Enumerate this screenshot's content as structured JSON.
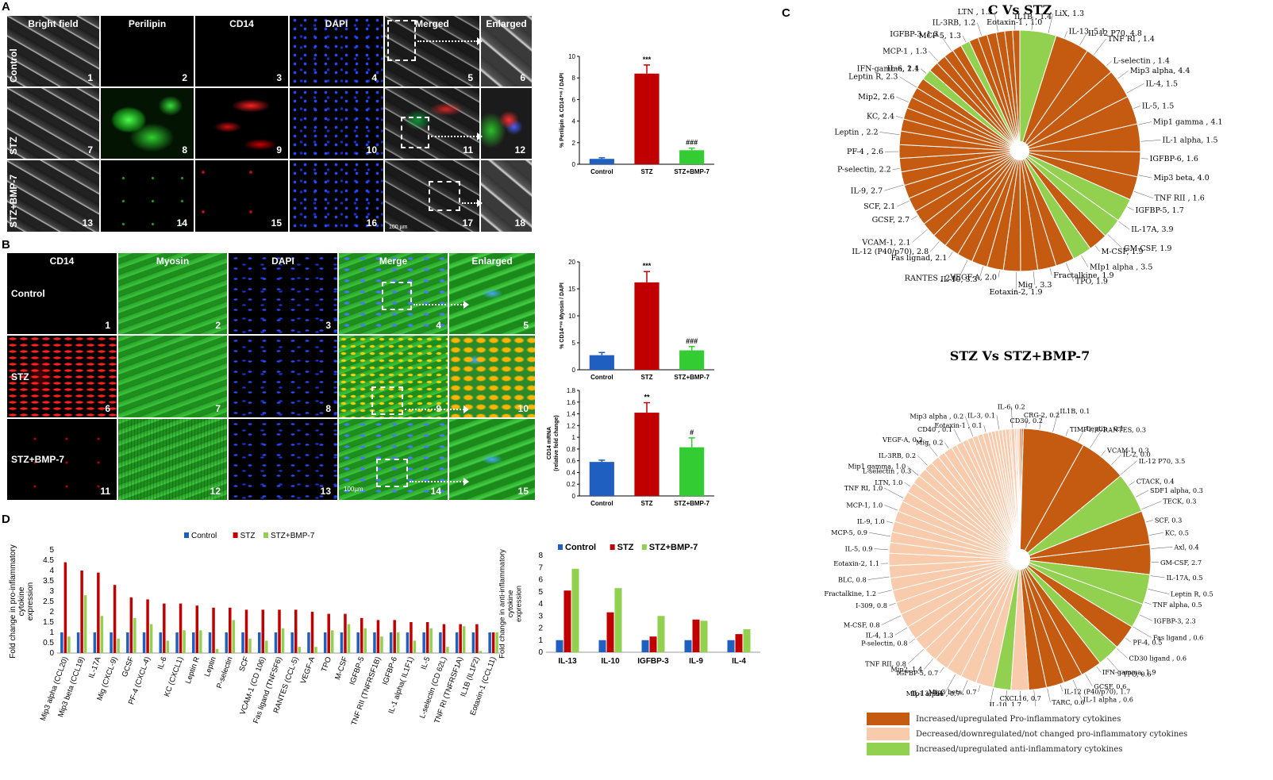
{
  "panels": {
    "a": "A",
    "b": "B",
    "c": "C",
    "d": "D"
  },
  "panelA": {
    "headers": [
      "Bright field",
      "Perilipin",
      "CD14",
      "DAPI",
      "Merged",
      "Enlarged"
    ],
    "rows": [
      "Control",
      "STZ",
      "STZ+BMP-7"
    ],
    "numbers": [
      "1",
      "2",
      "3",
      "4",
      "5",
      "6",
      "7",
      "8",
      "9",
      "10",
      "11",
      "12",
      "13",
      "14",
      "15",
      "16",
      "17",
      "18"
    ],
    "scale": "100 µm"
  },
  "panelB": {
    "headers": [
      "CD14",
      "Myosin",
      "DAPI",
      "Merge",
      "Enlarged"
    ],
    "rows": [
      "Control",
      "STZ",
      "STZ+BMP-7"
    ],
    "numbers": [
      "1",
      "2",
      "3",
      "4",
      "5",
      "6",
      "7",
      "8",
      "9",
      "10",
      "11",
      "12",
      "13",
      "14",
      "15"
    ],
    "scale": "100µm"
  },
  "colors": {
    "control": "#1f5fbf",
    "stz": "#c00000",
    "bmp7": "#33cc33",
    "bmp7light": "#92d050",
    "pro_up": "#c55a11",
    "pro_down": "#f8cbad",
    "anti_up": "#92d050"
  },
  "chart_data": [
    {
      "id": "A-bar",
      "type": "bar",
      "categories": [
        "Control",
        "STZ",
        "STZ+BMP-7"
      ],
      "values": [
        0.5,
        8.4,
        1.3
      ],
      "errors": [
        0.1,
        0.8,
        0.2
      ],
      "ylabel": "% Perilipin & CD14⁺ᵛᵉ / DAPI",
      "ylim": [
        0,
        10
      ],
      "yticks": [
        "0",
        "2",
        "4",
        "6",
        "8",
        "10"
      ],
      "annotations": [
        "",
        "***",
        "###"
      ]
    },
    {
      "id": "B-bar1",
      "type": "bar",
      "categories": [
        "Control",
        "STZ",
        "STZ+BMP-7"
      ],
      "values": [
        2.7,
        16.2,
        3.6
      ],
      "errors": [
        0.5,
        2.0,
        0.7
      ],
      "ylabel": "% CD14⁺ᵛᵉ Myosin / DAPI",
      "ylim": [
        0,
        20
      ],
      "yticks": [
        "0",
        "5",
        "10",
        "15",
        "20"
      ],
      "annotations": [
        "",
        "***",
        "###"
      ]
    },
    {
      "id": "B-bar2",
      "type": "bar",
      "categories": [
        "Control",
        "STZ",
        "STZ+BMP-7"
      ],
      "values": [
        0.58,
        1.42,
        0.83
      ],
      "errors": [
        0.03,
        0.17,
        0.16
      ],
      "ylabel": "CD14 mRNA (relative fold change)",
      "ylim": [
        0,
        1.8
      ],
      "yticks": [
        "0",
        "0.2",
        "0.4",
        "0.6",
        "0.8",
        "1",
        "1.2",
        "1.4",
        "1.6",
        "1.8"
      ],
      "annotations": [
        "",
        "**",
        "#"
      ]
    },
    {
      "id": "D-pro",
      "type": "bar",
      "legend": [
        "Control",
        "STZ",
        "STZ+BMP-7"
      ],
      "ylabel": "Fold change in pro-inflammatory cytokine expression",
      "ylim": [
        0,
        5
      ],
      "yticks": [
        "0",
        "0.5",
        "1",
        "1.5",
        "2",
        "2.5",
        "3",
        "3.5",
        "4",
        "4.5",
        "5"
      ],
      "categories": [
        "Mip3 alpha (CCL20)",
        "Mip3 beta (CCL19)",
        "IL-17A",
        "Mig (CXCL-9)",
        "GCSF",
        "PF-4 (CXCL-4)",
        "IL-6",
        "KC (CXCL1)",
        "Leptin R",
        "Leptin",
        "P-selectin",
        "SCF",
        "VCAM-1 (CD 106)",
        "Fas ligand (TNFSF6)",
        "RANTES (CCL-5)",
        "VEGF-A",
        "TPO",
        "M-CSF",
        "IGFBP-5",
        "TNF RII (TNFRSF1B)",
        "IGFBP-6",
        "IL-1 alpha( IL1F1)",
        "IL-5",
        "L-selectin (CD 62L)",
        "TNF RI (TNFRSF1A)",
        "IL1B (IL1F2)",
        "Eotaxin-1 (CCL11)"
      ],
      "series": [
        {
          "name": "Control",
          "values": [
            1,
            1,
            1,
            1,
            1,
            1,
            1,
            1,
            1,
            1,
            1,
            1,
            1,
            1,
            1,
            1,
            1,
            1,
            1,
            1,
            1,
            1,
            1,
            1,
            1,
            1,
            1
          ]
        },
        {
          "name": "STZ",
          "values": [
            4.4,
            4.0,
            3.9,
            3.3,
            2.7,
            2.6,
            2.4,
            2.4,
            2.3,
            2.2,
            2.2,
            2.1,
            2.1,
            2.1,
            2.1,
            2.0,
            1.9,
            1.9,
            1.7,
            1.6,
            1.6,
            1.5,
            1.5,
            1.4,
            1.4,
            1.4,
            1.0
          ]
        },
        {
          "name": "STZ+BMP-7",
          "values": [
            0.8,
            2.8,
            1.8,
            0.7,
            1.7,
            1.4,
            0.6,
            1.1,
            1.1,
            0.2,
            1.6,
            0.7,
            0.6,
            1.2,
            0.3,
            0.3,
            1.1,
            1.4,
            1.2,
            0.8,
            1.0,
            0.6,
            1.2,
            0.3,
            1.3,
            0.1,
            1.0
          ]
        }
      ]
    },
    {
      "id": "D-anti",
      "type": "bar",
      "legend": [
        "Control",
        "STZ",
        "STZ+BMP-7"
      ],
      "ylabel": "Fold change in anti-inflammatory cytokine expression",
      "ylim": [
        0,
        8
      ],
      "yticks": [
        "0",
        "1",
        "2",
        "3",
        "4",
        "5",
        "6",
        "7",
        "8"
      ],
      "categories": [
        "IL-13",
        "IL-10",
        "IGFBP-3",
        "IL-9",
        "IL-4"
      ],
      "series": [
        {
          "name": "Control",
          "values": [
            1,
            1,
            1,
            1,
            1
          ]
        },
        {
          "name": "STZ",
          "values": [
            5.1,
            3.3,
            1.3,
            2.7,
            1.5
          ]
        },
        {
          "name": "STZ+BMP-7",
          "values": [
            6.9,
            5.3,
            3.0,
            2.6,
            1.9
          ]
        }
      ]
    },
    {
      "id": "C-pie1",
      "type": "pie",
      "title": "C Vs STZ",
      "labels": [
        "IL-13, 5.1",
        "IL-12 P70, 4.8",
        "Mip3 alpha, 4.4",
        "Mip1 gamma , 4.1",
        "Mip3 beta, 4.0",
        "IL-17A, 3.9",
        "MIp1 alpha , 3.5",
        "Mig , 3.3",
        "IL-10, 3.3",
        "IL-12 (P40/p70), 2.8",
        "GCSF, 2.7",
        "IL-9, 2.7",
        "PF-4 , 2.6",
        "Mip2, 2.6",
        "IL-6, 2.4",
        "KC, 2.4",
        "Leptin R, 2.3",
        "Leptin , 2.2",
        "P-selectin, 2.2",
        "SCF, 2.1",
        "VCAM-1, 2.1",
        "Fas lignad, 2.1",
        "RANTES , 2.1",
        "VEGF-A, 2.0",
        "Eotaxin-2, 1.9",
        "Fractalkine, 1.9",
        "TPO, 1.9",
        "M-CSF, 1.9",
        "GM-CSF, 1.9",
        "IGFBP-5, 1.7",
        "TNF RII , 1.6",
        "IGFBP-6, 1.6",
        "IL-5, 1.5",
        "IL-1 alpha, 1.5",
        "IL-4, 1.5",
        "L-selectin , 1.4",
        "TNF RI , 1.4",
        "IL1B , 1.4",
        "LiX, 1.3",
        "IGFBP-3, 1.3",
        "LTN , 1.3",
        "MCP-5, 1.3",
        "MCP-1 , 1.3",
        "IL-3RB, 1.2",
        "IFN-gamma, 1.1",
        "Eotaxin-1 , 1.0"
      ],
      "values": [
        5.1,
        4.8,
        4.4,
        4.1,
        4.0,
        3.9,
        3.5,
        3.3,
        3.3,
        2.8,
        2.7,
        2.7,
        2.6,
        2.6,
        2.4,
        2.4,
        2.3,
        2.2,
        2.2,
        2.1,
        2.1,
        2.1,
        2.1,
        2.0,
        1.9,
        1.9,
        1.9,
        1.9,
        1.9,
        1.7,
        1.6,
        1.6,
        1.5,
        1.5,
        1.5,
        1.4,
        1.4,
        1.4,
        1.3,
        1.3,
        1.3,
        1.3,
        1.3,
        1.2,
        1.1,
        1.0
      ],
      "classes": [
        "anti",
        "pro",
        "pro",
        "pro",
        "pro",
        "pro",
        "pro",
        "pro",
        "anti",
        "anti",
        "pro",
        "anti",
        "pro",
        "pro",
        "pro",
        "pro",
        "pro",
        "pro",
        "pro",
        "pro",
        "pro",
        "pro",
        "pro",
        "pro",
        "pro",
        "pro",
        "pro",
        "pro",
        "pro",
        "pro",
        "pro",
        "pro",
        "pro",
        "pro",
        "anti",
        "pro",
        "pro",
        "pro",
        "pro",
        "anti",
        "pro",
        "pro",
        "pro",
        "pro",
        "pro",
        "pro"
      ]
    },
    {
      "id": "C-pie2",
      "type": "pie",
      "title": "STZ Vs STZ+BMP-7",
      "labels": [
        "IL-3, 0.1",
        "TIMP1, 0.1",
        "IL-2, 0.0",
        "IL-12 P70, 3.5",
        "GM-CSF, 2.7",
        "IGFBP-3, 2.3",
        "IFN-gamma, 1.9",
        "IL-12 (P40/p70), 1.7",
        "IL-10, 1.7",
        "IL-13, 1.4",
        "Mip2, 1.4",
        "IL-4, 1.3",
        "Fractalkine, 1.2",
        "Eotaxin-2, 1.1",
        "MCP-1, 1.0",
        "LTN, 1.0",
        "Mip1 gamma, 1.0",
        "IL-9, 1.0",
        "TNF RI, 1.0",
        "MCP-5, 0.9",
        "IL-5, 0.9",
        "BLC, 0.8",
        "I-309, 0.8",
        "M-CSF, 0.8",
        "P-selectin, 0.8",
        "TNF RII, 0.8",
        "IGFBP-5, 0.7",
        "MIp1 alpha , 0.7",
        "Mip3 beta, 0.7",
        "LiX, 0.7",
        "CXCL16, 0.7",
        "IGFBP-6, 0.6",
        "TARC, 0.6",
        "IL-1 alpha, 0.6",
        "GCSF, 0.6",
        "TPO, 0.6",
        "CD30 ligand, 0.6",
        "Fas ligand, 0.6",
        "PF-4, 0.5",
        "TNF alpha, 0.5",
        "IL-17A, 0.5",
        "Leptin R, 0.5",
        "Axl, 0.4",
        "KC, 0.5",
        "SCF, 0.3",
        "CTACK, 0.4",
        "SDF1 alpha, 0.3",
        "TECK, 0.3",
        "VCAM-1, 0.3",
        "RANTES, 0.3",
        "L-selectin, 0.3",
        "IL-6, 0.2",
        "CD30, 0.2",
        "IL-3RB, 0.2",
        "VEGF-A, 0.2",
        "Mig, 0.2",
        "CRG-2, 0.2",
        "CD40, 0.1",
        "Mip3 alpha, 0.2",
        "Leptin, 0.1",
        "IL1B, 0.1",
        "Eotaxin-1, 0.1"
      ],
      "values": [
        0.1,
        0.1,
        0.0,
        3.5,
        2.7,
        2.3,
        1.9,
        1.7,
        1.7,
        1.4,
        1.4,
        1.3,
        1.2,
        1.1,
        1.0,
        1.0,
        1.0,
        1.0,
        1.0,
        0.9,
        0.9,
        0.8,
        0.8,
        0.8,
        0.8,
        0.8,
        0.7,
        0.7,
        0.7,
        0.7,
        0.7,
        0.6,
        0.6,
        0.6,
        0.6,
        0.6,
        0.6,
        0.6,
        0.5,
        0.5,
        0.5,
        0.5,
        0.4,
        0.5,
        0.3,
        0.4,
        0.3,
        0.3,
        0.3,
        0.3,
        0.3,
        0.2,
        0.2,
        0.2,
        0.2,
        0.2,
        0.2,
        0.1,
        0.2,
        0.1,
        0.1,
        0.1
      ],
      "classes": [
        "pro",
        "pro",
        "pro",
        "pro",
        "pro",
        "anti",
        "pro",
        "pro",
        "anti",
        "anti",
        "pro",
        "anti",
        "pro",
        "pro",
        "pro",
        "pro",
        "down",
        "anti",
        "down",
        "down",
        "down",
        "down",
        "down",
        "down",
        "down",
        "down",
        "down",
        "down",
        "down",
        "down",
        "down",
        "down",
        "down",
        "down",
        "down",
        "down",
        "down",
        "down",
        "down",
        "down",
        "down",
        "down",
        "down",
        "down",
        "down",
        "down",
        "down",
        "down",
        "down",
        "down",
        "down",
        "down",
        "down",
        "down",
        "down",
        "down",
        "down",
        "down",
        "down",
        "down",
        "down",
        "down"
      ]
    }
  ],
  "pieLabels1": [
    "IFN-gamma, 1.1",
    "MCP-1 , 1.3",
    "IGFBP-3, 1.3",
    "MCP-5, 1.3",
    "IL-3RB, 1.2",
    "LTN , 1.3",
    "Eotaxin-1 , 1.0",
    "IL1B , 1.4",
    "LiX, 1.3",
    "IL-13, 5.1",
    "IL-12 P70, 4.8",
    "TNF RI , 1.4",
    "L-selectin , 1.4",
    "Mip3 alpha, 4.4",
    "IL-4, 1.5",
    "IL-5, 1.5",
    "Mip1 gamma , 4.1",
    "IL-1 alpha, 1.5",
    "IGFBP-6, 1.6",
    "Mip3 beta, 4.0",
    "TNF RII , 1.6",
    "IGFBP-5, 1.7",
    "IL-17A, 3.9",
    "GM-CSF, 1.9",
    "M-CSF, 1.9",
    "MIp1 alpha , 3.5",
    "TPO, 1.9",
    "Fractalkine, 1.9",
    "Mig , 3.3",
    "Eotaxin-2, 1.9",
    "VEGF-A, 2.0",
    "IL-10, 3.3",
    "RANTES , 2.1",
    "Fas lignad, 2.1",
    "IL-12 (P40/p70), 2.8",
    "VCAM-1, 2.1",
    "GCSF, 2.7",
    "SCF, 2.1",
    "IL-9, 2.7",
    "P-selectin, 2.2",
    "PF-4 , 2.6",
    "Leptin , 2.2",
    "KC, 2.4",
    "Mip2, 2.6",
    "Leptin R, 2.3",
    "IL-6, 2.4"
  ],
  "pieLabels2": [
    "L-selectin , 0.3",
    "IL-3RB, 0.2",
    "VEGF-A, 0.2",
    "Mig, 0.2",
    "CD40 , 0.1",
    "Mip3 alpha , 0.2",
    "Eotaxin-1 , 0.1",
    "IL-3, 0.1",
    "IL-6, 0.2",
    "CD30, 0.2",
    "CRG-2, 0.2",
    "IL1B, 0.1",
    "TIMP1, 0.1",
    "Leptin , 0.1",
    "RANTES, 0.3",
    "VCAM-1, 0.3",
    "IL-2, 0.0",
    "IL-12 P70, 3.5",
    "CTACK, 0.4",
    "SDF1 alpha, 0.3",
    "TECK, 0.3",
    "SCF, 0.3",
    "KC, 0.5",
    "Axl, 0.4",
    "GM-CSF, 2.7",
    "IL-17A, 0.5",
    "Leptin R, 0.5",
    "TNF alpha, 0.5",
    "IGFBP-3, 2.3",
    "Fas ligand , 0.6",
    "PF-4, 0.5",
    "CD30 ligand , 0.6",
    "TPO, 0.6",
    "IFN-gamma, 1.9",
    "GCSF, 0.6",
    "IL-1 alpha , 0.6",
    "IL-12 (P40/p70), 1.7",
    "TARC, 0.6",
    "IGFBP-6, 0.6",
    "CXCL16, 0.7",
    "IL-10, 1.7",
    "LiX, 0.7",
    "Mip3 beta, 0.7",
    "MIp1 alpha , 0.7",
    "IL-13, 1.4",
    "IGFBP-5, 0.7",
    "Mip2, 1.4",
    "TNF RII, 0.8",
    "P-selectin, 0.8",
    "IL-4, 1.3",
    "M-CSF, 0.8",
    "I-309, 0.8",
    "Fractalkine, 1.2",
    "BLC, 0.8",
    "Eotaxin-2, 1.1",
    "IL-5, 0.9",
    "MCP-5, 0.9",
    "IL-9, 1.0",
    "MCP-1, 1.0",
    "TNF RI, 1.0",
    "LTN, 1.0",
    "Mip1 gamma, 1.0"
  ],
  "legendC": [
    "Increased/upregulated Pro-inflammatory cytokines",
    "Decreased/downregulated/not changed pro-inflammatory cytokines",
    "Increased/upregulated anti-inflammatory cytokines"
  ]
}
